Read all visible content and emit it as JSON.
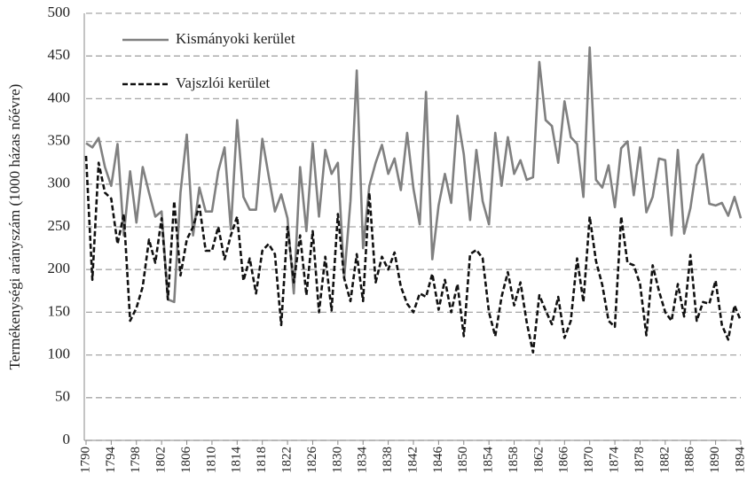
{
  "chart_data": {
    "type": "line",
    "y_label": "Termékenységi arányszám  (1000 házas nőévre)",
    "x": [
      1790,
      1791,
      1792,
      1793,
      1794,
      1795,
      1796,
      1797,
      1798,
      1799,
      1800,
      1801,
      1802,
      1803,
      1804,
      1805,
      1806,
      1807,
      1808,
      1809,
      1810,
      1811,
      1812,
      1813,
      1814,
      1815,
      1816,
      1817,
      1818,
      1819,
      1820,
      1821,
      1822,
      1823,
      1824,
      1825,
      1826,
      1827,
      1828,
      1829,
      1830,
      1831,
      1832,
      1833,
      1834,
      1835,
      1836,
      1837,
      1838,
      1839,
      1840,
      1841,
      1842,
      1843,
      1844,
      1845,
      1846,
      1847,
      1848,
      1849,
      1850,
      1851,
      1852,
      1853,
      1854,
      1855,
      1856,
      1857,
      1858,
      1859,
      1860,
      1861,
      1862,
      1863,
      1864,
      1865,
      1866,
      1867,
      1868,
      1869,
      1870,
      1871,
      1872,
      1873,
      1874,
      1875,
      1876,
      1877,
      1878,
      1879,
      1880,
      1881,
      1882,
      1883,
      1884,
      1885,
      1886,
      1887,
      1888,
      1889,
      1890,
      1891,
      1892,
      1893,
      1894
    ],
    "series": [
      {
        "name": "Kismányoki kerület",
        "color": "#808080",
        "dashed": false,
        "values": [
          348,
          343,
          354,
          320,
          298,
          347,
          240,
          315,
          255,
          320,
          290,
          262,
          268,
          165,
          162,
          290,
          358,
          240,
          296,
          268,
          268,
          315,
          343,
          247,
          375,
          285,
          270,
          270,
          353,
          310,
          268,
          288,
          260,
          172,
          320,
          245,
          348,
          262,
          340,
          312,
          325,
          190,
          280,
          433,
          225,
          298,
          325,
          346,
          312,
          330,
          293,
          360,
          295,
          253,
          408,
          212,
          275,
          312,
          278,
          380,
          335,
          258,
          340,
          280,
          253,
          360,
          298,
          355,
          312,
          328,
          305,
          308,
          443,
          375,
          368,
          325,
          397,
          355,
          347,
          285,
          460,
          305,
          296,
          322,
          273,
          342,
          350,
          287,
          343,
          267,
          285,
          330,
          328,
          240,
          340,
          242,
          272,
          322,
          335,
          277,
          275,
          278,
          263,
          285,
          260
        ]
      },
      {
        "name": "Vajszlói kerület",
        "color": "#111111",
        "dashed": true,
        "values": [
          333,
          188,
          325,
          290,
          283,
          230,
          265,
          140,
          155,
          180,
          235,
          208,
          260,
          165,
          280,
          193,
          235,
          250,
          275,
          222,
          222,
          250,
          212,
          240,
          262,
          187,
          213,
          172,
          222,
          230,
          218,
          135,
          250,
          185,
          240,
          170,
          245,
          150,
          215,
          152,
          265,
          190,
          163,
          218,
          163,
          290,
          185,
          215,
          200,
          220,
          180,
          160,
          150,
          172,
          168,
          195,
          153,
          188,
          150,
          183,
          122,
          218,
          223,
          213,
          150,
          122,
          168,
          197,
          158,
          185,
          138,
          103,
          170,
          152,
          136,
          168,
          120,
          140,
          213,
          162,
          262,
          210,
          182,
          140,
          133,
          262,
          208,
          205,
          183,
          123,
          205,
          175,
          150,
          140,
          183,
          145,
          217,
          140,
          162,
          160,
          187,
          135,
          118,
          158,
          140
        ]
      }
    ],
    "xlim": [
      1790,
      1894
    ],
    "xticks": [
      1790,
      1794,
      1798,
      1802,
      1806,
      1810,
      1814,
      1818,
      1822,
      1826,
      1830,
      1834,
      1838,
      1842,
      1846,
      1850,
      1854,
      1858,
      1862,
      1866,
      1870,
      1874,
      1878,
      1882,
      1886,
      1890,
      1894
    ],
    "ylim": [
      0,
      500
    ],
    "yticks": [
      0,
      50,
      100,
      150,
      200,
      250,
      300,
      350,
      400,
      450,
      500
    ],
    "grid": true,
    "legend": "upper-left"
  }
}
